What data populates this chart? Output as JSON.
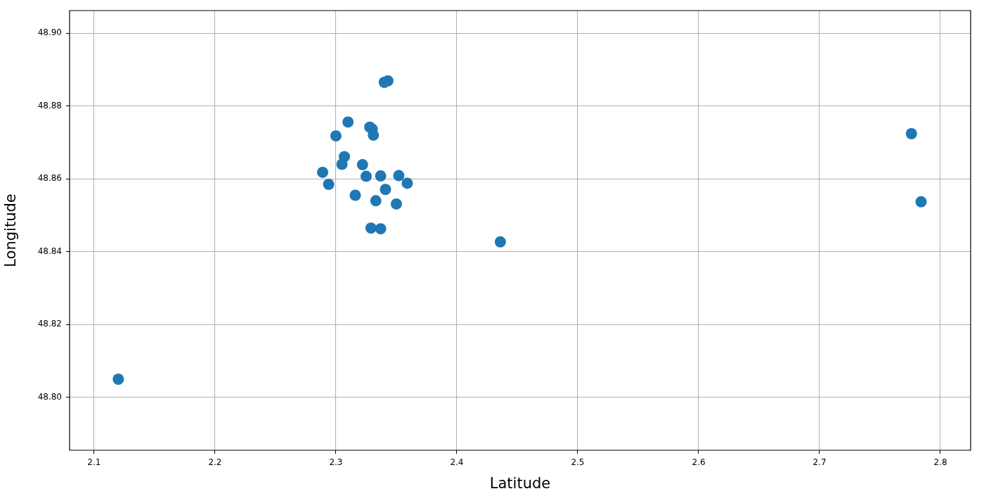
{
  "chart_data": {
    "type": "scatter",
    "xlabel": "Latitude",
    "ylabel": "Longitude",
    "color": "#1f77b4",
    "marker": "circle",
    "grid": true,
    "x": [
      2.34,
      2.343,
      2.31,
      2.328,
      2.33,
      2.331,
      2.3,
      2.307,
      2.305,
      2.322,
      2.289,
      2.325,
      2.337,
      2.352,
      2.359,
      2.294,
      2.341,
      2.316,
      2.333,
      2.35,
      2.329,
      2.337,
      2.436,
      2.12,
      2.776,
      2.784
    ],
    "values": [
      48.8865,
      48.8869,
      48.8756,
      48.8742,
      48.8737,
      48.872,
      48.8718,
      48.8661,
      48.864,
      48.8639,
      48.8618,
      48.8607,
      48.8608,
      48.8609,
      48.8588,
      48.8585,
      48.8571,
      48.8555,
      48.854,
      48.8531,
      48.8465,
      48.8463,
      48.8427,
      48.805,
      48.8724,
      48.8537
    ],
    "xlim": [
      2.0797,
      2.825
    ],
    "ylim": [
      48.7855,
      48.9062
    ],
    "xticks": [
      2.1,
      2.2,
      2.3,
      2.4,
      2.5,
      2.6,
      2.7,
      2.8
    ],
    "yticks": [
      {
        "value": 48.8,
        "label": "48.80"
      },
      48.82,
      48.84,
      48.86,
      48.88,
      {
        "value": 48.9,
        "label": "48.90"
      }
    ]
  }
}
